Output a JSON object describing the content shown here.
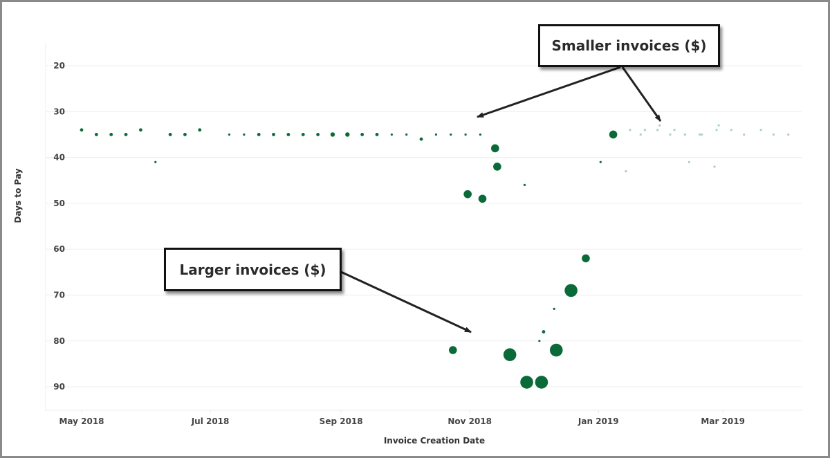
{
  "chart_data": {
    "type": "scatter",
    "xlabel": "Invoice Creation Date",
    "ylabel": "Days to Pay",
    "x_ticks": [
      "May 2018",
      "Jul 2018",
      "Sep 2018",
      "Nov 2018",
      "Jan 2019",
      "Mar 2019"
    ],
    "x_tick_dates": [
      "2018-05-01",
      "2018-07-01",
      "2018-09-01",
      "2018-11-01",
      "2019-01-01",
      "2019-03-01"
    ],
    "y_ticks": [
      20,
      30,
      40,
      50,
      60,
      70,
      80,
      90
    ],
    "ylim": [
      95,
      15
    ],
    "y_reversed": true,
    "grid": "horizontal",
    "marker_color": "#0b6b38",
    "faded_marker_color": "#a9d3b6",
    "size_encoding": "relative invoice amount (1=smallest, 5=largest)",
    "points": [
      {
        "date": "2018-05-01",
        "days": 34,
        "size": 2
      },
      {
        "date": "2018-05-08",
        "days": 35,
        "size": 2
      },
      {
        "date": "2018-05-15",
        "days": 35,
        "size": 2
      },
      {
        "date": "2018-05-22",
        "days": 35,
        "size": 2
      },
      {
        "date": "2018-05-29",
        "days": 34,
        "size": 2
      },
      {
        "date": "2018-06-05",
        "days": 41,
        "size": 1
      },
      {
        "date": "2018-06-12",
        "days": 35,
        "size": 2
      },
      {
        "date": "2018-06-19",
        "days": 35,
        "size": 2
      },
      {
        "date": "2018-06-26",
        "days": 34,
        "size": 2
      },
      {
        "date": "2018-07-10",
        "days": 35,
        "size": 1
      },
      {
        "date": "2018-07-17",
        "days": 35,
        "size": 1
      },
      {
        "date": "2018-07-24",
        "days": 35,
        "size": 2
      },
      {
        "date": "2018-07-31",
        "days": 35,
        "size": 2
      },
      {
        "date": "2018-08-07",
        "days": 35,
        "size": 2
      },
      {
        "date": "2018-08-14",
        "days": 35,
        "size": 2
      },
      {
        "date": "2018-08-21",
        "days": 35,
        "size": 2
      },
      {
        "date": "2018-08-28",
        "days": 35,
        "size": 3
      },
      {
        "date": "2018-09-04",
        "days": 35,
        "size": 3
      },
      {
        "date": "2018-09-11",
        "days": 35,
        "size": 2
      },
      {
        "date": "2018-09-18",
        "days": 35,
        "size": 2
      },
      {
        "date": "2018-09-25",
        "days": 35,
        "size": 1
      },
      {
        "date": "2018-10-02",
        "days": 35,
        "size": 1
      },
      {
        "date": "2018-10-09",
        "days": 36,
        "size": 2
      },
      {
        "date": "2018-10-16",
        "days": 35,
        "size": 1
      },
      {
        "date": "2018-10-23",
        "days": 35,
        "size": 1
      },
      {
        "date": "2018-10-30",
        "days": 35,
        "size": 1
      },
      {
        "date": "2018-11-06",
        "days": 35,
        "size": 1
      },
      {
        "date": "2018-11-13",
        "days": 38,
        "size": 4
      },
      {
        "date": "2018-11-14",
        "days": 42,
        "size": 4
      },
      {
        "date": "2018-10-31",
        "days": 48,
        "size": 4
      },
      {
        "date": "2018-11-07",
        "days": 49,
        "size": 4
      },
      {
        "date": "2018-11-27",
        "days": 46,
        "size": 1
      },
      {
        "date": "2018-10-24",
        "days": 82,
        "size": 4
      },
      {
        "date": "2018-11-20",
        "days": 83,
        "size": 5
      },
      {
        "date": "2018-11-28",
        "days": 89,
        "size": 5
      },
      {
        "date": "2018-12-05",
        "days": 89,
        "size": 5
      },
      {
        "date": "2018-12-04",
        "days": 80,
        "size": 1
      },
      {
        "date": "2018-12-06",
        "days": 78,
        "size": 2
      },
      {
        "date": "2018-12-11",
        "days": 73,
        "size": 1
      },
      {
        "date": "2018-12-12",
        "days": 82,
        "size": 5
      },
      {
        "date": "2018-12-19",
        "days": 69,
        "size": 5
      },
      {
        "date": "2018-12-26",
        "days": 62,
        "size": 4
      },
      {
        "date": "2019-01-02",
        "days": 41,
        "size": 1
      },
      {
        "date": "2019-01-08",
        "days": 35,
        "size": 4
      },
      {
        "date": "2019-01-14",
        "days": 43,
        "size": 1,
        "faded": true
      },
      {
        "date": "2019-01-16",
        "days": 34,
        "size": 1,
        "faded": true
      },
      {
        "date": "2019-01-21",
        "days": 35,
        "size": 1,
        "faded": true
      },
      {
        "date": "2019-01-23",
        "days": 34,
        "size": 1,
        "faded": true
      },
      {
        "date": "2019-01-29",
        "days": 34,
        "size": 1,
        "faded": true
      },
      {
        "date": "2019-01-30",
        "days": 33,
        "size": 1,
        "faded": true
      },
      {
        "date": "2019-02-04",
        "days": 35,
        "size": 1,
        "faded": true
      },
      {
        "date": "2019-02-06",
        "days": 34,
        "size": 1,
        "faded": true
      },
      {
        "date": "2019-02-11",
        "days": 35,
        "size": 1,
        "faded": true
      },
      {
        "date": "2019-02-13",
        "days": 41,
        "size": 1,
        "faded": true
      },
      {
        "date": "2019-02-18",
        "days": 35,
        "size": 1,
        "faded": true
      },
      {
        "date": "2019-02-19",
        "days": 35,
        "size": 1,
        "faded": true
      },
      {
        "date": "2019-02-25",
        "days": 42,
        "size": 1,
        "faded": true
      },
      {
        "date": "2019-02-26",
        "days": 34,
        "size": 1,
        "faded": true
      },
      {
        "date": "2019-02-27",
        "days": 33,
        "size": 1,
        "faded": true
      },
      {
        "date": "2019-03-05",
        "days": 34,
        "size": 1,
        "faded": true
      },
      {
        "date": "2019-03-11",
        "days": 35,
        "size": 1,
        "faded": true
      },
      {
        "date": "2019-03-19",
        "days": 34,
        "size": 1,
        "faded": true
      },
      {
        "date": "2019-03-25",
        "days": 35,
        "size": 1,
        "faded": true
      },
      {
        "date": "2019-04-01",
        "days": 35,
        "size": 1,
        "faded": true
      }
    ],
    "annotations": [
      {
        "text": "Smaller invoices ($)",
        "points_to": [
          "2018-11-04 / 31 days",
          "2019-01-31 / 32 days"
        ]
      },
      {
        "text": "Larger invoices ($)",
        "points_to": [
          "2018-11-05 / 80 days"
        ]
      }
    ]
  }
}
